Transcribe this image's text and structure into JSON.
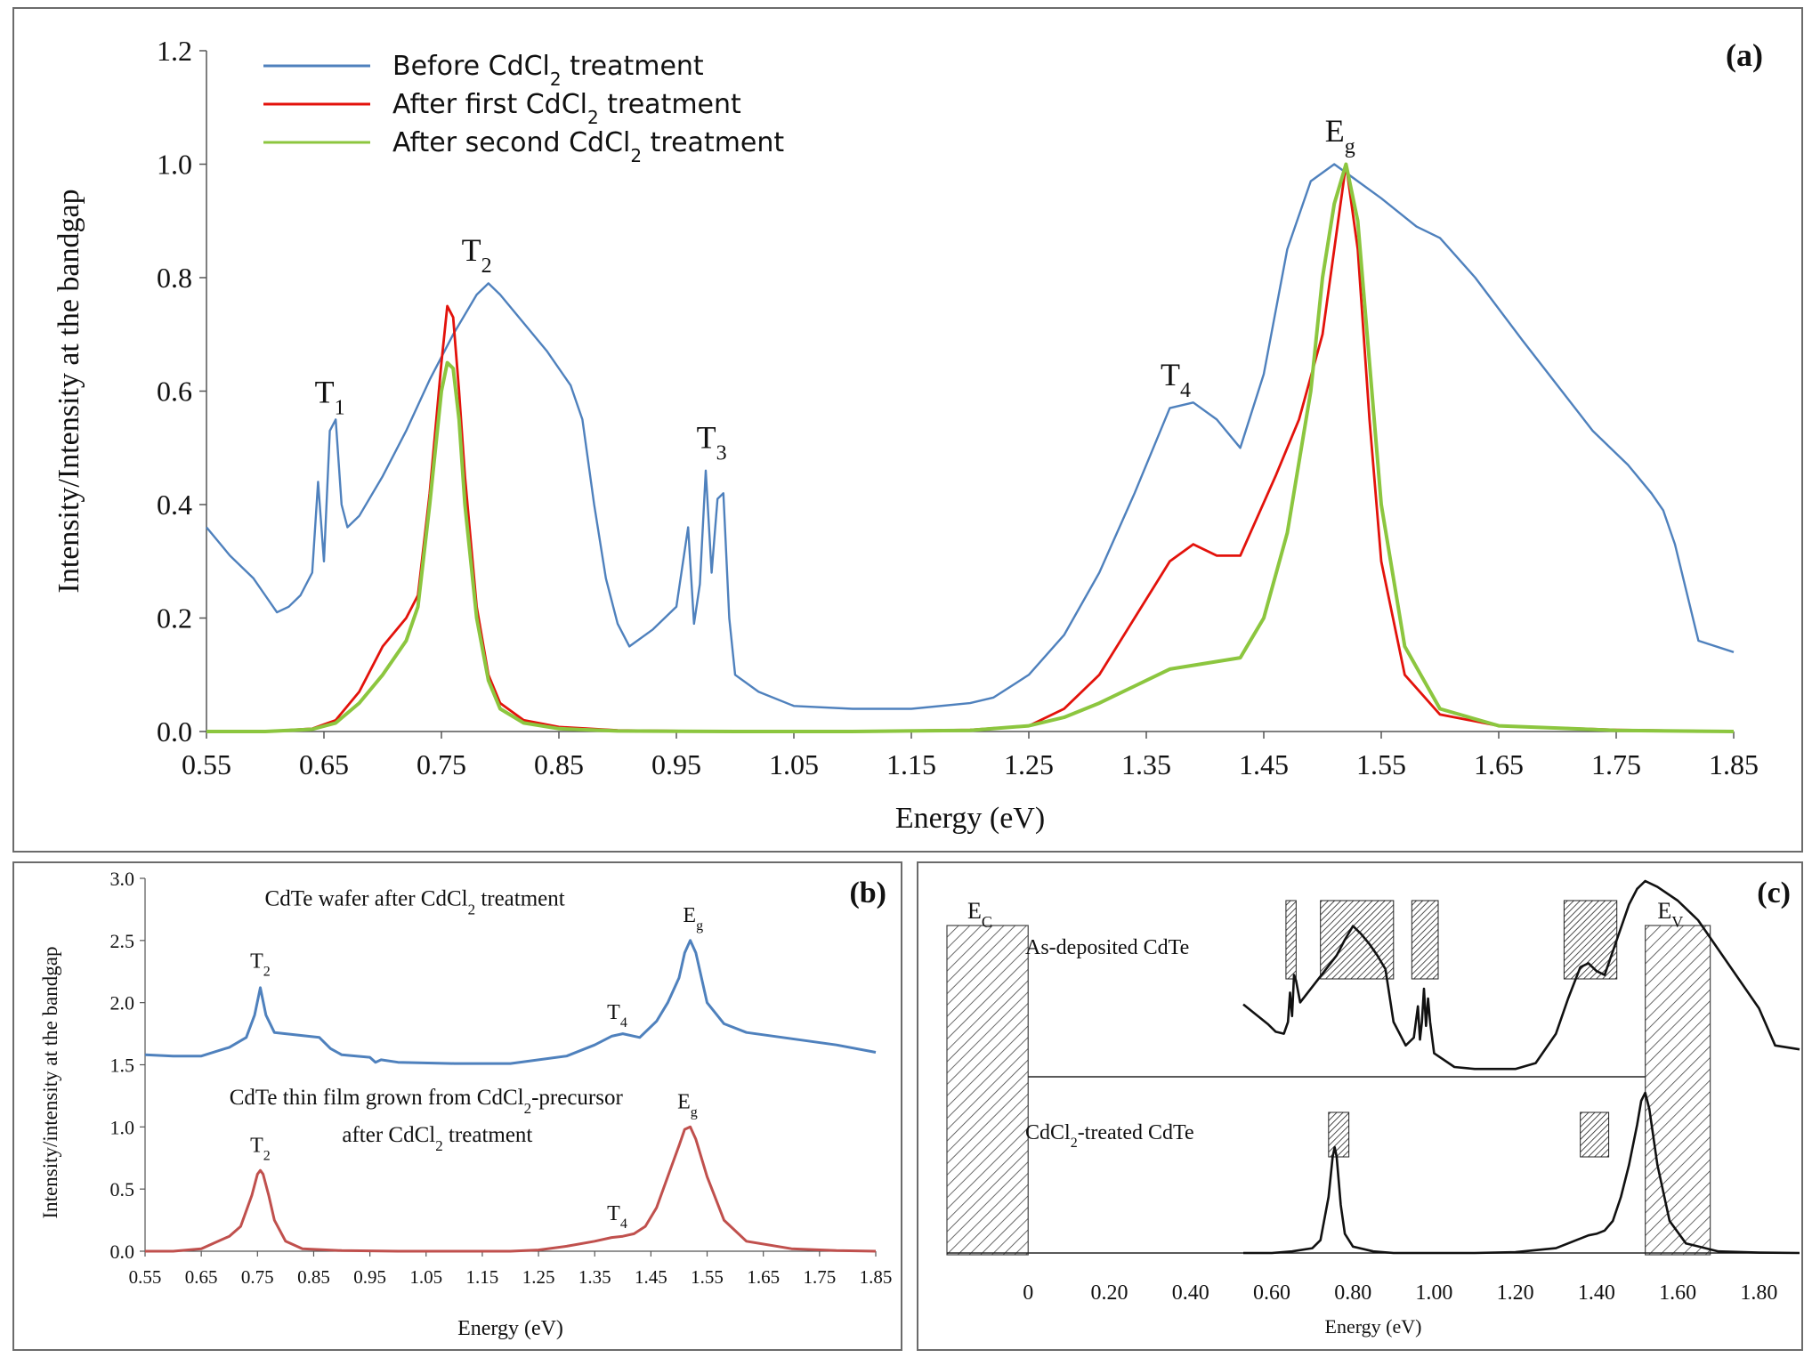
{
  "chart_data": [
    {
      "panel": "(a)",
      "type": "line",
      "xlabel": "Energy (eV)",
      "ylabel": "Intensity/Intensity at the bandgap",
      "xlim": [
        0.55,
        1.85
      ],
      "ylim": [
        0,
        1.2
      ],
      "xticks": [
        "0.55",
        "0.65",
        "0.75",
        "0.85",
        "0.95",
        "1.05",
        "1.15",
        "1.25",
        "1.35",
        "1.45",
        "1.55",
        "1.65",
        "1.75",
        "1.85"
      ],
      "yticks": [
        "0.0",
        "0.2",
        "0.4",
        "0.6",
        "0.8",
        "1.0",
        "1.2"
      ],
      "legend_position": "top-left",
      "series": [
        {
          "name": "Before CdCl2 treatment",
          "color": "#4f81bd",
          "x": [
            0.55,
            0.57,
            0.59,
            0.6,
            0.61,
            0.62,
            0.63,
            0.64,
            0.645,
            0.65,
            0.655,
            0.66,
            0.665,
            0.67,
            0.68,
            0.7,
            0.72,
            0.74,
            0.76,
            0.78,
            0.79,
            0.8,
            0.82,
            0.84,
            0.86,
            0.87,
            0.88,
            0.89,
            0.9,
            0.91,
            0.93,
            0.95,
            0.96,
            0.965,
            0.97,
            0.975,
            0.98,
            0.985,
            0.99,
            0.995,
            1.0,
            1.02,
            1.05,
            1.1,
            1.15,
            1.2,
            1.22,
            1.25,
            1.28,
            1.31,
            1.34,
            1.37,
            1.39,
            1.41,
            1.43,
            1.45,
            1.47,
            1.49,
            1.51,
            1.53,
            1.55,
            1.58,
            1.6,
            1.63,
            1.67,
            1.7,
            1.73,
            1.76,
            1.78,
            1.79,
            1.8,
            1.82,
            1.85
          ],
          "y": [
            0.36,
            0.31,
            0.27,
            0.24,
            0.21,
            0.22,
            0.24,
            0.28,
            0.44,
            0.3,
            0.53,
            0.55,
            0.4,
            0.36,
            0.38,
            0.45,
            0.53,
            0.62,
            0.7,
            0.77,
            0.79,
            0.77,
            0.72,
            0.67,
            0.61,
            0.55,
            0.4,
            0.27,
            0.19,
            0.15,
            0.18,
            0.22,
            0.36,
            0.19,
            0.26,
            0.46,
            0.28,
            0.41,
            0.42,
            0.2,
            0.1,
            0.07,
            0.045,
            0.04,
            0.04,
            0.05,
            0.06,
            0.1,
            0.17,
            0.28,
            0.42,
            0.57,
            0.58,
            0.55,
            0.5,
            0.63,
            0.85,
            0.97,
            1.0,
            0.97,
            0.94,
            0.89,
            0.87,
            0.8,
            0.69,
            0.61,
            0.53,
            0.47,
            0.42,
            0.39,
            0.33,
            0.16,
            0.14
          ]
        },
        {
          "name": "After first CdCl2 treatment",
          "color": "#e3120b",
          "x": [
            0.55,
            0.6,
            0.64,
            0.66,
            0.68,
            0.7,
            0.72,
            0.73,
            0.74,
            0.75,
            0.755,
            0.76,
            0.765,
            0.77,
            0.78,
            0.79,
            0.8,
            0.82,
            0.85,
            0.9,
            1.0,
            1.1,
            1.2,
            1.25,
            1.28,
            1.31,
            1.34,
            1.37,
            1.39,
            1.41,
            1.43,
            1.46,
            1.48,
            1.5,
            1.51,
            1.52,
            1.53,
            1.54,
            1.55,
            1.57,
            1.6,
            1.65,
            1.75,
            1.85
          ],
          "y": [
            0,
            0,
            0.005,
            0.02,
            0.07,
            0.15,
            0.2,
            0.24,
            0.42,
            0.65,
            0.75,
            0.73,
            0.6,
            0.45,
            0.22,
            0.1,
            0.05,
            0.02,
            0.008,
            0.002,
            0,
            0,
            0.003,
            0.01,
            0.04,
            0.1,
            0.2,
            0.3,
            0.33,
            0.31,
            0.31,
            0.45,
            0.55,
            0.7,
            0.85,
            1.0,
            0.85,
            0.55,
            0.3,
            0.1,
            0.03,
            0.01,
            0.003,
            0
          ]
        },
        {
          "name": "After second CdCl2 treatment",
          "color": "#8cc63f",
          "x": [
            0.55,
            0.6,
            0.64,
            0.66,
            0.68,
            0.7,
            0.72,
            0.73,
            0.74,
            0.75,
            0.755,
            0.76,
            0.765,
            0.77,
            0.78,
            0.79,
            0.8,
            0.82,
            0.85,
            0.9,
            1.0,
            1.1,
            1.2,
            1.25,
            1.28,
            1.31,
            1.34,
            1.37,
            1.4,
            1.43,
            1.45,
            1.47,
            1.49,
            1.5,
            1.51,
            1.52,
            1.53,
            1.54,
            1.55,
            1.57,
            1.6,
            1.65,
            1.75,
            1.85
          ],
          "y": [
            0,
            0,
            0.004,
            0.015,
            0.05,
            0.1,
            0.16,
            0.22,
            0.4,
            0.6,
            0.65,
            0.64,
            0.55,
            0.4,
            0.2,
            0.09,
            0.04,
            0.015,
            0.005,
            0.001,
            0,
            0,
            0.002,
            0.01,
            0.025,
            0.05,
            0.08,
            0.11,
            0.12,
            0.13,
            0.2,
            0.35,
            0.6,
            0.8,
            0.93,
            1.0,
            0.9,
            0.65,
            0.4,
            0.15,
            0.04,
            0.01,
            0.002,
            0
          ]
        }
      ],
      "annotations": [
        {
          "text": "T",
          "sub": "1",
          "x": 0.655,
          "y": 0.58
        },
        {
          "text": "T",
          "sub": "2",
          "x": 0.78,
          "y": 0.83
        },
        {
          "text": "T",
          "sub": "3",
          "x": 0.98,
          "y": 0.5
        },
        {
          "text": "T",
          "sub": "4",
          "x": 1.375,
          "y": 0.61
        },
        {
          "text": "E",
          "sub": "g",
          "x": 1.515,
          "y": 1.04
        }
      ],
      "panel_label": "(a)"
    },
    {
      "panel": "(b)",
      "type": "line",
      "xlabel": "Energy (eV)",
      "ylabel": "Intensity/intensity at the bandgap",
      "xlim": [
        0.55,
        1.85
      ],
      "ylim": [
        0,
        3.0
      ],
      "xticks": [
        "0.55",
        "0.65",
        "0.75",
        "0.85",
        "0.95",
        "1.05",
        "1.15",
        "1.25",
        "1.35",
        "1.45",
        "1.55",
        "1.65",
        "1.75",
        "1.85"
      ],
      "yticks": [
        "0.0",
        "0.5",
        "1.0",
        "1.5",
        "2.0",
        "2.5",
        "3.0"
      ],
      "series": [
        {
          "name": "CdTe wafer after CdCl2 treatment",
          "color": "#4f81bd",
          "x": [
            0.55,
            0.6,
            0.65,
            0.7,
            0.73,
            0.745,
            0.755,
            0.765,
            0.78,
            0.82,
            0.86,
            0.88,
            0.9,
            0.95,
            0.96,
            0.97,
            1.0,
            1.1,
            1.2,
            1.3,
            1.35,
            1.38,
            1.4,
            1.43,
            1.46,
            1.48,
            1.5,
            1.51,
            1.52,
            1.53,
            1.55,
            1.58,
            1.62,
            1.7,
            1.78,
            1.85
          ],
          "y": [
            1.58,
            1.57,
            1.57,
            1.64,
            1.72,
            1.9,
            2.12,
            1.9,
            1.76,
            1.74,
            1.72,
            1.63,
            1.58,
            1.56,
            1.52,
            1.54,
            1.52,
            1.51,
            1.51,
            1.57,
            1.66,
            1.73,
            1.75,
            1.72,
            1.85,
            2.0,
            2.2,
            2.4,
            2.5,
            2.4,
            2.0,
            1.83,
            1.76,
            1.71,
            1.66,
            1.6
          ]
        },
        {
          "name": "CdTe thin film grown from CdCl2-precursor after CdCl2 treatment",
          "color": "#c0504d",
          "x": [
            0.55,
            0.6,
            0.65,
            0.7,
            0.72,
            0.74,
            0.75,
            0.755,
            0.76,
            0.77,
            0.78,
            0.8,
            0.83,
            0.9,
            1.0,
            1.1,
            1.2,
            1.25,
            1.3,
            1.35,
            1.38,
            1.4,
            1.42,
            1.44,
            1.46,
            1.48,
            1.5,
            1.51,
            1.52,
            1.53,
            1.55,
            1.58,
            1.62,
            1.7,
            1.78,
            1.85
          ],
          "y": [
            0,
            0,
            0.02,
            0.12,
            0.2,
            0.45,
            0.62,
            0.65,
            0.62,
            0.45,
            0.25,
            0.08,
            0.02,
            0.005,
            0,
            0,
            0,
            0.01,
            0.04,
            0.08,
            0.11,
            0.12,
            0.14,
            0.2,
            0.35,
            0.6,
            0.85,
            0.98,
            1.0,
            0.9,
            0.6,
            0.25,
            0.08,
            0.02,
            0.005,
            0
          ]
        }
      ],
      "annotations": [
        {
          "text": "T",
          "sub": "2",
          "x": 0.755,
          "y": 2.28
        },
        {
          "text": "T",
          "sub": "4",
          "x": 1.39,
          "y": 1.87
        },
        {
          "text": "E",
          "sub": "g",
          "x": 1.525,
          "y": 2.65
        },
        {
          "text": "T",
          "sub": "2",
          "x": 0.755,
          "y": 0.8
        },
        {
          "text": "T",
          "sub": "4",
          "x": 1.39,
          "y": 0.25
        },
        {
          "text": "E",
          "sub": "g",
          "x": 1.515,
          "y": 1.15
        }
      ],
      "curve_labels": [
        {
          "parts": [
            "CdTe wafer after CdCl",
            "2",
            " treatment"
          ],
          "x": 1.03,
          "y": 2.78
        },
        {
          "parts": [
            "CdTe thin film grown from CdCl",
            "2",
            "-precursor"
          ],
          "x": 1.05,
          "y": 1.18
        },
        {
          "parts": [
            "after CdCl",
            "2",
            " treatment"
          ],
          "x": 1.07,
          "y": 0.88
        }
      ],
      "panel_label": "(b)"
    },
    {
      "panel": "(c)",
      "type": "line",
      "xlabel": "Energy (eV)",
      "xlim": [
        -0.2,
        1.9
      ],
      "xticks": [
        "0",
        "0.20",
        "0.40",
        "0.60",
        "0.80",
        "1.00",
        "1.20",
        "1.40",
        "1.60",
        "1.80"
      ],
      "band_labels": {
        "ec": "E",
        "ec_sub": "C",
        "ev": "E",
        "ev_sub": "V"
      },
      "series": [
        {
          "name": "As-deposited CdTe",
          "color": "#111111",
          "x": [
            0.53,
            0.56,
            0.59,
            0.61,
            0.63,
            0.64,
            0.645,
            0.65,
            0.655,
            0.66,
            0.67,
            0.7,
            0.73,
            0.76,
            0.78,
            0.8,
            0.82,
            0.84,
            0.86,
            0.88,
            0.9,
            0.93,
            0.95,
            0.96,
            0.965,
            0.97,
            0.975,
            0.98,
            0.985,
            0.99,
            1.0,
            1.05,
            1.1,
            1.15,
            1.2,
            1.25,
            1.3,
            1.33,
            1.36,
            1.38,
            1.4,
            1.42,
            1.45,
            1.48,
            1.5,
            1.52,
            1.55,
            1.6,
            1.65,
            1.7,
            1.75,
            1.8,
            1.84,
            1.9
          ],
          "y": [
            0.37,
            0.32,
            0.27,
            0.23,
            0.22,
            0.28,
            0.43,
            0.31,
            0.52,
            0.49,
            0.38,
            0.46,
            0.54,
            0.62,
            0.7,
            0.77,
            0.73,
            0.68,
            0.62,
            0.55,
            0.28,
            0.16,
            0.2,
            0.36,
            0.19,
            0.28,
            0.45,
            0.26,
            0.4,
            0.28,
            0.12,
            0.05,
            0.04,
            0.04,
            0.04,
            0.07,
            0.22,
            0.4,
            0.56,
            0.58,
            0.54,
            0.52,
            0.7,
            0.88,
            0.96,
            1.0,
            0.97,
            0.9,
            0.8,
            0.65,
            0.5,
            0.35,
            0.16,
            0.14
          ]
        },
        {
          "name": "CdCl2-treated CdTe",
          "color": "#111111",
          "x": [
            0.53,
            0.6,
            0.65,
            0.7,
            0.72,
            0.74,
            0.75,
            0.755,
            0.76,
            0.765,
            0.77,
            0.78,
            0.8,
            0.85,
            0.9,
            1.0,
            1.1,
            1.2,
            1.3,
            1.35,
            1.38,
            1.4,
            1.42,
            1.44,
            1.46,
            1.48,
            1.5,
            1.51,
            1.52,
            1.53,
            1.55,
            1.58,
            1.62,
            1.7,
            1.8,
            1.9
          ],
          "y": [
            0,
            0,
            0.01,
            0.03,
            0.08,
            0.35,
            0.6,
            0.66,
            0.6,
            0.45,
            0.3,
            0.12,
            0.04,
            0.01,
            0,
            0,
            0,
            0.005,
            0.03,
            0.08,
            0.11,
            0.12,
            0.14,
            0.2,
            0.35,
            0.55,
            0.8,
            0.95,
            1.0,
            0.9,
            0.55,
            0.2,
            0.06,
            0.01,
            0.002,
            0
          ]
        }
      ],
      "text_labels": {
        "as_deposited": {
          "parts": [
            "As-deposited CdTe"
          ]
        },
        "cdcl2_treated": {
          "parts": [
            "CdCl",
            "2",
            "-treated CdTe"
          ]
        }
      },
      "shaded_bands_top": [
        [
          0.635,
          0.66
        ],
        [
          0.72,
          0.9
        ],
        [
          0.945,
          1.01
        ],
        [
          1.32,
          1.45
        ]
      ],
      "shaded_bands_bottom": [
        [
          0.74,
          0.79
        ],
        [
          1.36,
          1.43
        ]
      ],
      "panel_label": "(c)"
    }
  ],
  "legend": [
    {
      "parts": [
        "Before CdCl",
        "2",
        " treatment"
      ],
      "color": "#4f81bd"
    },
    {
      "parts": [
        "After first CdCl",
        "2",
        " treatment"
      ],
      "color": "#e3120b"
    },
    {
      "parts": [
        "After second CdCl",
        "2",
        " treatment"
      ],
      "color": "#8cc63f"
    }
  ]
}
